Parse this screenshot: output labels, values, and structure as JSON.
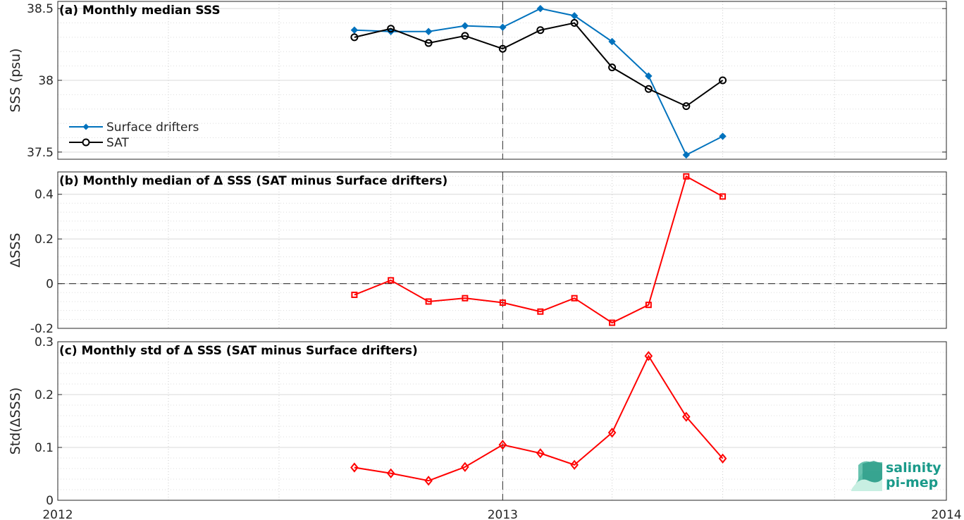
{
  "chart_data": [
    {
      "type": "line",
      "title": "(a) Monthly median SSS",
      "ylabel": "SSS (psu)",
      "xlabel": "",
      "xlim": [
        "2012-01-01",
        "2014-01-01"
      ],
      "ylim": [
        37.45,
        38.55
      ],
      "yticks": [
        37.5,
        38,
        38.5
      ],
      "ytick_labels": [
        "37.5",
        "38",
        "38.5"
      ],
      "grid": "on",
      "legend": "bottom-left",
      "series": [
        {
          "name": "Surface drifters",
          "color": "#0072BD",
          "marker": "diamond-filled",
          "x": [
            "2012-09-01",
            "2012-10-01",
            "2012-11-01",
            "2012-12-01",
            "2013-01-01",
            "2013-02-01",
            "2013-03-01",
            "2013-04-01",
            "2013-05-01",
            "2013-06-01",
            "2013-07-01"
          ],
          "values": [
            38.35,
            38.34,
            38.34,
            38.38,
            38.37,
            38.5,
            38.45,
            38.27,
            38.03,
            37.48,
            37.61
          ]
        },
        {
          "name": "SAT",
          "color": "#000000",
          "marker": "circle-open",
          "x": [
            "2012-09-01",
            "2012-10-01",
            "2012-11-01",
            "2012-12-01",
            "2013-01-01",
            "2013-02-01",
            "2013-03-01",
            "2013-04-01",
            "2013-05-01",
            "2013-06-01",
            "2013-07-01"
          ],
          "values": [
            38.3,
            38.36,
            38.26,
            38.31,
            38.22,
            38.35,
            38.4,
            38.09,
            37.94,
            37.82,
            38.0
          ]
        }
      ]
    },
    {
      "type": "line",
      "title": "(b) Monthly median of Δ SSS (SAT minus Surface drifters)",
      "ylabel": "ΔSSS",
      "xlabel": "",
      "xlim": [
        "2012-01-01",
        "2014-01-01"
      ],
      "ylim": [
        -0.2,
        0.5
      ],
      "yticks": [
        -0.2,
        0,
        0.2,
        0.4
      ],
      "ytick_labels": [
        "-0.2",
        "0",
        "0.2",
        "0.4"
      ],
      "grid": "on",
      "zero_line": true,
      "series": [
        {
          "color": "#FF0000",
          "marker": "square-open",
          "x": [
            "2012-09-01",
            "2012-10-01",
            "2012-11-01",
            "2012-12-01",
            "2013-01-01",
            "2013-02-01",
            "2013-03-01",
            "2013-04-01",
            "2013-05-01",
            "2013-06-01",
            "2013-07-01"
          ],
          "values": [
            -0.05,
            0.015,
            -0.08,
            -0.065,
            -0.085,
            -0.125,
            -0.065,
            -0.175,
            -0.095,
            0.48,
            0.39
          ]
        }
      ]
    },
    {
      "type": "line",
      "title": "(c) Monthly std of Δ SSS (SAT minus Surface drifters)",
      "ylabel": "Std(ΔSSS)",
      "xlabel": "",
      "xlim": [
        "2012-01-01",
        "2014-01-01"
      ],
      "ylim": [
        0,
        0.3
      ],
      "yticks": [
        0,
        0.1,
        0.2,
        0.3
      ],
      "ytick_labels": [
        "0",
        "0.1",
        "0.2",
        "0.3"
      ],
      "xticks": [
        "2012-01-01",
        "2013-01-01",
        "2014-01-01"
      ],
      "xtick_labels": [
        "2012",
        "2013",
        "2014"
      ],
      "grid": "on",
      "series": [
        {
          "color": "#FF0000",
          "marker": "diamond-open",
          "x": [
            "2012-09-01",
            "2012-10-01",
            "2012-11-01",
            "2012-12-01",
            "2013-01-01",
            "2013-02-01",
            "2013-03-01",
            "2013-04-01",
            "2013-05-01",
            "2013-06-01",
            "2013-07-01"
          ],
          "values": [
            0.062,
            0.051,
            0.037,
            0.063,
            0.105,
            0.089,
            0.067,
            0.128,
            0.273,
            0.158,
            0.079
          ]
        }
      ]
    }
  ],
  "logo": {
    "line1": "salinity",
    "line2": "pi-mep"
  }
}
